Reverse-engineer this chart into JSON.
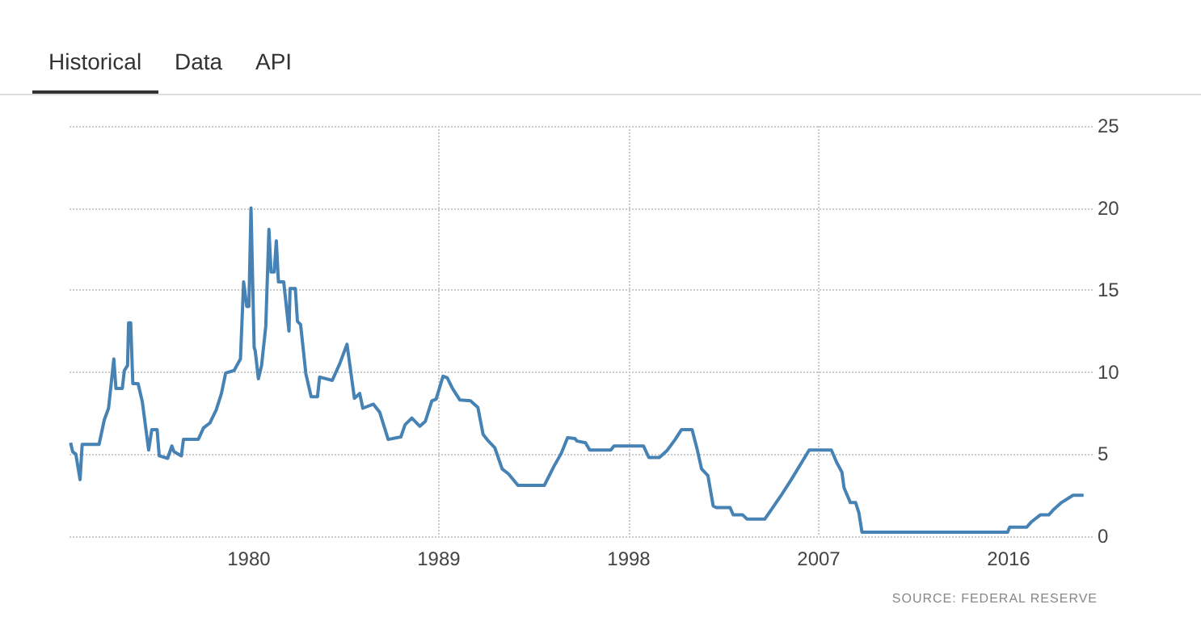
{
  "chart_data": {
    "type": "line",
    "annotations": [
      "Historical",
      "Data",
      "API",
      "SOURCE: FEDERAL RESERVE"
    ],
    "xlim": [
      1971.5,
      2019.6
    ],
    "xticks": [
      1980,
      1989,
      1998,
      2007,
      2016
    ],
    "ylim": [
      0,
      25
    ],
    "yticks": [
      0,
      5,
      10,
      15,
      20,
      25
    ],
    "grid": true,
    "marker": "none",
    "line_style": "solid",
    "series": [
      {
        "color": "#4682b4",
        "x": [
          1971.55,
          1971.65,
          1971.8,
          1972.0,
          1972.1,
          1972.9,
          1973.15,
          1973.35,
          1973.6,
          1973.7,
          1974.0,
          1974.1,
          1974.25,
          1974.3,
          1974.4,
          1974.5,
          1974.75,
          1974.95,
          1975.25,
          1975.4,
          1975.65,
          1975.75,
          1976.15,
          1976.35,
          1976.45,
          1976.8,
          1976.9,
          1977.6,
          1977.85,
          1978.15,
          1978.45,
          1978.7,
          1978.9,
          1979.3,
          1979.6,
          1979.75,
          1979.9,
          1980.0,
          1980.1,
          1980.15,
          1980.25,
          1980.3,
          1980.45,
          1980.6,
          1980.8,
          1980.95,
          1981.05,
          1981.2,
          1981.3,
          1981.4,
          1981.65,
          1981.9,
          1981.95,
          1982.2,
          1982.3,
          1982.45,
          1982.7,
          1982.95,
          1983.25,
          1983.35,
          1983.95,
          1984.3,
          1984.65,
          1985.0,
          1985.25,
          1985.4,
          1985.9,
          1986.2,
          1986.6,
          1987.2,
          1987.4,
          1987.72,
          1988.1,
          1988.36,
          1988.67,
          1988.87,
          1989.2,
          1989.4,
          1989.65,
          1990.0,
          1990.5,
          1990.85,
          1991.1,
          1991.35,
          1991.65,
          1992.0,
          1992.3,
          1992.75,
          1994.0,
          1994.45,
          1994.8,
          1995.1,
          1995.45,
          1995.55,
          1995.95,
          1996.15,
          1997.15,
          1997.3,
          1998.7,
          1998.95,
          1999.45,
          1999.8,
          2000.2,
          2000.5,
          2001.0,
          2001.25,
          2001.45,
          2001.75,
          2002.0,
          2002.15,
          2002.8,
          2002.95,
          2003.4,
          2003.6,
          2004.45,
          2005.2,
          2005.7,
          2006.55,
          2007.6,
          2007.85,
          2008.1,
          2008.2,
          2008.5,
          2008.75,
          2008.9,
          2009.05,
          2015.95,
          2016.05,
          2016.85,
          2017.1,
          2017.5,
          2017.9,
          2018.15,
          2018.5,
          2019.05,
          2019.55
        ],
        "values": [
          5.7,
          5.15,
          5.0,
          3.45,
          5.6,
          5.6,
          7.1,
          7.8,
          10.8,
          9.0,
          9.0,
          10.1,
          10.4,
          13.0,
          13.0,
          9.3,
          9.3,
          8.2,
          5.25,
          6.5,
          6.5,
          4.9,
          4.75,
          5.5,
          5.15,
          4.9,
          5.9,
          5.9,
          6.6,
          6.9,
          7.7,
          8.7,
          9.95,
          10.1,
          10.8,
          15.5,
          14.0,
          14.0,
          20.0,
          20.0,
          11.5,
          11.3,
          9.6,
          10.4,
          12.8,
          18.7,
          16.1,
          16.1,
          18.0,
          15.5,
          15.5,
          12.5,
          15.1,
          15.1,
          13.1,
          12.9,
          9.9,
          8.5,
          8.5,
          9.7,
          9.5,
          10.5,
          11.7,
          8.4,
          8.7,
          7.8,
          8.05,
          7.55,
          5.9,
          6.05,
          6.8,
          7.2,
          6.7,
          7.0,
          8.25,
          8.35,
          9.75,
          9.65,
          9.0,
          8.3,
          8.25,
          7.85,
          6.2,
          5.8,
          5.4,
          4.1,
          3.8,
          3.1,
          3.1,
          4.25,
          5.05,
          6.0,
          5.95,
          5.8,
          5.7,
          5.25,
          5.25,
          5.5,
          5.5,
          4.8,
          4.8,
          5.2,
          5.9,
          6.5,
          6.5,
          5.25,
          4.1,
          3.7,
          1.85,
          1.75,
          1.75,
          1.3,
          1.3,
          1.05,
          1.05,
          2.45,
          3.45,
          5.25,
          5.25,
          4.5,
          3.9,
          2.95,
          2.05,
          2.05,
          1.45,
          0.25,
          0.25,
          0.55,
          0.55,
          0.9,
          1.3,
          1.3,
          1.65,
          2.05,
          2.5,
          2.5
        ]
      }
    ]
  }
}
